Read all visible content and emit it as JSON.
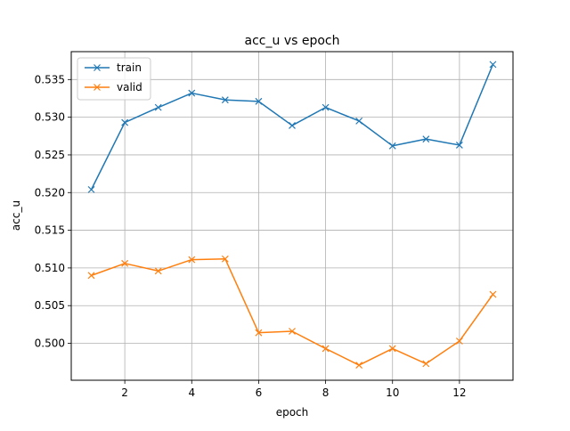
{
  "chart_data": {
    "type": "line",
    "title": "acc_u vs epoch",
    "xlabel": "epoch",
    "ylabel": "acc_u",
    "xlim": [
      0.4,
      13.6
    ],
    "ylim": [
      0.4951,
      0.5387
    ],
    "xticks": [
      2,
      4,
      6,
      8,
      10,
      12
    ],
    "yticks": [
      0.5,
      0.505,
      0.51,
      0.515,
      0.52,
      0.525,
      0.53,
      0.535
    ],
    "ytick_labels": [
      "0.500",
      "0.505",
      "0.510",
      "0.515",
      "0.520",
      "0.525",
      "0.530",
      "0.535"
    ],
    "grid": true,
    "legend_position": "top-left",
    "x": [
      1,
      2,
      3,
      4,
      5,
      6,
      7,
      8,
      9,
      10,
      11,
      12,
      13
    ],
    "series": [
      {
        "name": "train",
        "color": "#1f77b4",
        "marker": "x",
        "values": [
          0.5204,
          0.5293,
          0.5313,
          0.5332,
          0.5323,
          0.5321,
          0.5289,
          0.5313,
          0.5295,
          0.5262,
          0.5271,
          0.5263,
          0.537
        ]
      },
      {
        "name": "valid",
        "color": "#ff7f0e",
        "marker": "x",
        "values": [
          0.509,
          0.5106,
          0.5096,
          0.5111,
          0.5112,
          0.5014,
          0.5016,
          0.4993,
          0.4971,
          0.4993,
          0.4973,
          0.5003,
          0.5065
        ]
      }
    ]
  }
}
